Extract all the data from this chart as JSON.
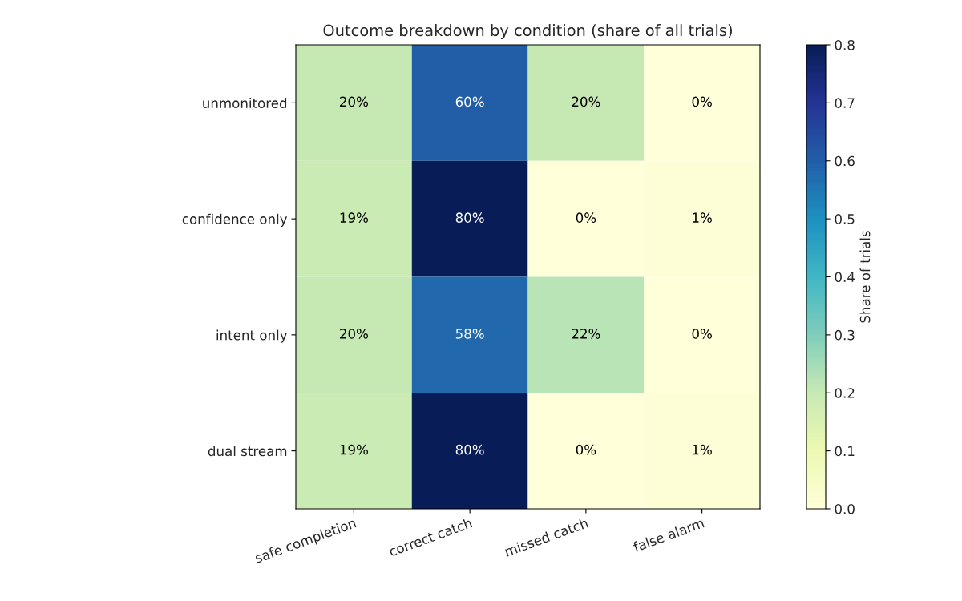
{
  "chart_data": {
    "type": "heatmap",
    "title": "Outcome breakdown by condition (share of all trials)",
    "categories": [
      "safe completion",
      "correct catch",
      "missed catch",
      "false alarm"
    ],
    "y_categories": [
      "unmonitored",
      "confidence only",
      "intent only",
      "dual stream"
    ],
    "cells": [
      [
        0.2,
        0.6,
        0.2,
        0.0
      ],
      [
        0.19,
        0.8,
        0.0,
        0.01
      ],
      [
        0.2,
        0.58,
        0.22,
        0.0
      ],
      [
        0.19,
        0.8,
        0.0,
        0.01
      ]
    ],
    "cell_labels": [
      [
        "20%",
        "60%",
        "20%",
        "0%"
      ],
      [
        "19%",
        "80%",
        "0%",
        "1%"
      ],
      [
        "20%",
        "58%",
        "22%",
        "0%"
      ],
      [
        "19%",
        "80%",
        "0%",
        "1%"
      ]
    ],
    "clabel": "Share of trials",
    "clim": [
      0,
      0.8
    ],
    "cticks": [
      {
        "value": 0,
        "label": "0.0"
      },
      {
        "value": 0.1,
        "label": "0.1"
      },
      {
        "value": 0.2,
        "label": "0.2"
      },
      {
        "value": 0.3,
        "label": "0.3"
      },
      {
        "value": 0.4,
        "label": "0.4"
      },
      {
        "value": 0.5,
        "label": "0.5"
      },
      {
        "value": 0.6,
        "label": "0.6"
      },
      {
        "value": 0.7,
        "label": "0.7"
      },
      {
        "value": 0.8,
        "label": "0.8"
      }
    ]
  }
}
